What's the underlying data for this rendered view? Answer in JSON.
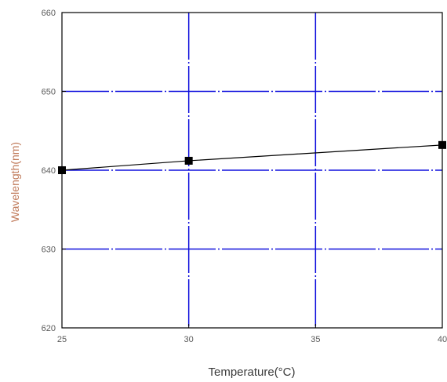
{
  "chart_data": {
    "type": "line",
    "title": "",
    "xlabel": "Temperature(°C)",
    "ylabel": "Wavelength(nm)",
    "xlim": [
      25,
      40
    ],
    "ylim": [
      620,
      660
    ],
    "x_ticks": [
      25,
      30,
      35,
      40
    ],
    "y_ticks": [
      620,
      630,
      640,
      650,
      660
    ],
    "grid": true,
    "grid_color": "#1010dd",
    "line_color": "#000000",
    "marker": "square",
    "series": [
      {
        "x": [
          25,
          30,
          40
        ],
        "y": [
          640.0,
          641.2,
          643.2
        ]
      }
    ]
  }
}
